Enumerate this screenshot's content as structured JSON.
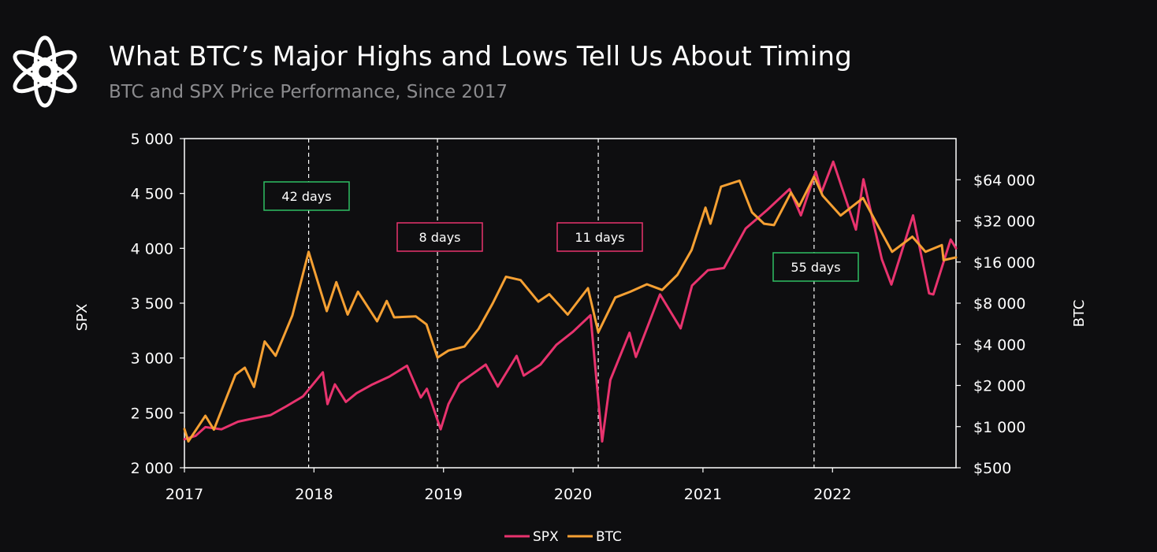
{
  "header": {
    "title": "What BTC’s Major Highs and Lows Tell Us About Timing",
    "subtitle": "BTC and SPX Price Performance, Since 2017",
    "logo_icon": "interlaced-knot-logo-icon"
  },
  "colors": {
    "background": "#0e0e10",
    "spx": "#e8336e",
    "btc": "#f5a033",
    "frame": "#ffffff",
    "box_green": "#2fbf63",
    "box_pink": "#e8336e"
  },
  "chart_data": {
    "type": "line",
    "title": "What BTC’s Major Highs and Lows Tell Us About Timing",
    "subtitle": "BTC and SPX Price Performance, Since 2017",
    "x_axis": {
      "ticks": [
        "2017",
        "2018",
        "2019",
        "2020",
        "2021",
        "2022"
      ],
      "range": [
        "2017-01-01",
        "2022-12-15"
      ]
    },
    "y_left": {
      "label": "SPX",
      "range": [
        2000,
        5000
      ],
      "ticks": [
        "2 000",
        "2 500",
        "3 000",
        "3 500",
        "4 000",
        "4 500",
        "5 000"
      ]
    },
    "y_right": {
      "label": "BTC",
      "scale": "log2",
      "range": [
        500,
        128000
      ],
      "ticks": [
        "$500",
        "$1 000",
        "$2 000",
        "$4 000",
        "$8 000",
        "$16 000",
        "$32 000",
        "$64 000"
      ]
    },
    "grid": false,
    "legend": {
      "position": "bottom-center",
      "entries": [
        "SPX",
        "BTC"
      ]
    },
    "series": [
      {
        "name": "SPX",
        "axis": "left",
        "points": [
          [
            "2017-01-01",
            2260
          ],
          [
            "2017-02-01",
            2290
          ],
          [
            "2017-03-01",
            2370
          ],
          [
            "2017-04-15",
            2350
          ],
          [
            "2017-06-01",
            2420
          ],
          [
            "2017-07-15",
            2450
          ],
          [
            "2017-09-01",
            2480
          ],
          [
            "2017-10-15",
            2560
          ],
          [
            "2017-12-01",
            2650
          ],
          [
            "2018-01-26",
            2870
          ],
          [
            "2018-02-08",
            2580
          ],
          [
            "2018-03-01",
            2760
          ],
          [
            "2018-04-01",
            2600
          ],
          [
            "2018-05-01",
            2680
          ],
          [
            "2018-06-15",
            2760
          ],
          [
            "2018-08-01",
            2830
          ],
          [
            "2018-09-20",
            2930
          ],
          [
            "2018-10-10",
            2780
          ],
          [
            "2018-10-29",
            2640
          ],
          [
            "2018-11-15",
            2720
          ],
          [
            "2018-12-24",
            2350
          ],
          [
            "2019-01-15",
            2580
          ],
          [
            "2019-02-15",
            2770
          ],
          [
            "2019-04-30",
            2940
          ],
          [
            "2019-06-03",
            2740
          ],
          [
            "2019-07-26",
            3020
          ],
          [
            "2019-08-15",
            2840
          ],
          [
            "2019-10-01",
            2940
          ],
          [
            "2019-11-15",
            3120
          ],
          [
            "2020-01-01",
            3240
          ],
          [
            "2020-02-19",
            3390
          ],
          [
            "2020-03-23",
            2240
          ],
          [
            "2020-04-15",
            2800
          ],
          [
            "2020-06-08",
            3230
          ],
          [
            "2020-06-26",
            3010
          ],
          [
            "2020-09-02",
            3580
          ],
          [
            "2020-10-30",
            3270
          ],
          [
            "2020-12-01",
            3660
          ],
          [
            "2021-01-15",
            3800
          ],
          [
            "2021-03-01",
            3820
          ],
          [
            "2021-05-01",
            4180
          ],
          [
            "2021-07-01",
            4350
          ],
          [
            "2021-09-02",
            4540
          ],
          [
            "2021-10-04",
            4300
          ],
          [
            "2021-11-15",
            4700
          ],
          [
            "2021-12-01",
            4510
          ],
          [
            "2022-01-03",
            4790
          ],
          [
            "2022-03-08",
            4170
          ],
          [
            "2022-03-29",
            4630
          ],
          [
            "2022-05-20",
            3900
          ],
          [
            "2022-06-16",
            3670
          ],
          [
            "2022-08-16",
            4300
          ],
          [
            "2022-09-30",
            3590
          ],
          [
            "2022-10-12",
            3580
          ],
          [
            "2022-11-30",
            4080
          ],
          [
            "2022-12-15",
            4000
          ]
        ]
      },
      {
        "name": "BTC",
        "axis": "right",
        "points": [
          [
            "2017-01-01",
            960
          ],
          [
            "2017-01-12",
            780
          ],
          [
            "2017-03-01",
            1200
          ],
          [
            "2017-03-25",
            950
          ],
          [
            "2017-05-25",
            2400
          ],
          [
            "2017-06-20",
            2700
          ],
          [
            "2017-07-16",
            1950
          ],
          [
            "2017-08-15",
            4200
          ],
          [
            "2017-09-15",
            3300
          ],
          [
            "2017-11-01",
            6500
          ],
          [
            "2017-12-17",
            19000
          ],
          [
            "2018-02-06",
            7000
          ],
          [
            "2018-03-05",
            11400
          ],
          [
            "2018-04-06",
            6600
          ],
          [
            "2018-05-05",
            9700
          ],
          [
            "2018-06-28",
            5900
          ],
          [
            "2018-07-25",
            8300
          ],
          [
            "2018-08-15",
            6300
          ],
          [
            "2018-10-15",
            6400
          ],
          [
            "2018-11-14",
            5600
          ],
          [
            "2018-12-15",
            3200
          ],
          [
            "2019-01-15",
            3600
          ],
          [
            "2019-03-01",
            3850
          ],
          [
            "2019-04-10",
            5200
          ],
          [
            "2019-05-20",
            8000
          ],
          [
            "2019-06-26",
            12500
          ],
          [
            "2019-08-06",
            11800
          ],
          [
            "2019-09-25",
            8200
          ],
          [
            "2019-10-26",
            9300
          ],
          [
            "2019-12-17",
            6600
          ],
          [
            "2020-02-12",
            10300
          ],
          [
            "2020-03-12",
            4900
          ],
          [
            "2020-04-29",
            8800
          ],
          [
            "2020-06-10",
            9700
          ],
          [
            "2020-07-27",
            11000
          ],
          [
            "2020-09-08",
            10000
          ],
          [
            "2020-10-21",
            12900
          ],
          [
            "2020-11-30",
            19600
          ],
          [
            "2021-01-08",
            40000
          ],
          [
            "2021-01-22",
            30500
          ],
          [
            "2021-02-21",
            57000
          ],
          [
            "2021-04-14",
            63000
          ],
          [
            "2021-05-19",
            37000
          ],
          [
            "2021-06-22",
            30500
          ],
          [
            "2021-07-20",
            29800
          ],
          [
            "2021-09-06",
            51500
          ],
          [
            "2021-09-29",
            41000
          ],
          [
            "2021-11-10",
            67500
          ],
          [
            "2021-12-04",
            49000
          ],
          [
            "2022-01-24",
            35000
          ],
          [
            "2022-03-28",
            47000
          ],
          [
            "2022-05-12",
            28500
          ],
          [
            "2022-06-18",
            19000
          ],
          [
            "2022-08-14",
            24500
          ],
          [
            "2022-09-20",
            19000
          ],
          [
            "2022-11-05",
            21300
          ],
          [
            "2022-11-10",
            16500
          ],
          [
            "2022-12-15",
            17300
          ]
        ]
      }
    ],
    "annotations": [
      {
        "date": "2017-12-17",
        "text": "42 days",
        "style": "green"
      },
      {
        "date": "2018-12-15",
        "text": "8 days",
        "style": "pink"
      },
      {
        "date": "2020-03-12",
        "text": "11 days",
        "style": "pink"
      },
      {
        "date": "2021-11-10",
        "text": "55 days",
        "style": "green"
      }
    ]
  }
}
